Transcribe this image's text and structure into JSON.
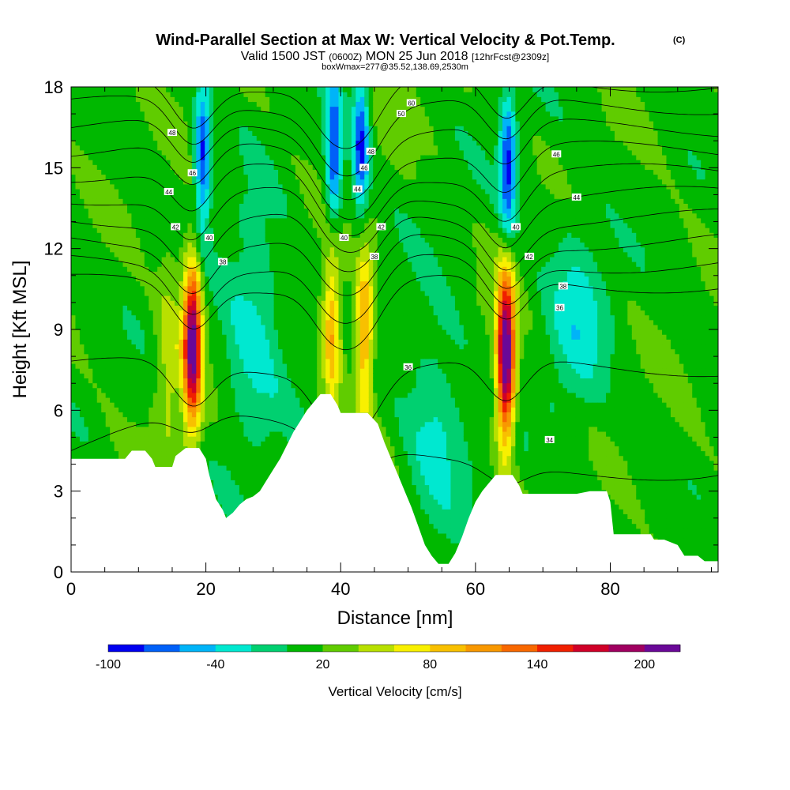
{
  "titles": {
    "main": "Wind-Parallel Section at Max W: Vertical Velocity & Pot.Temp.",
    "copyright": "(C)",
    "valid_a": "Valid 1500 JST ",
    "valid_b": "(0600Z)",
    "valid_c": " MON 25 Jun 2018 ",
    "valid_d": "[12hrFcst@2309z]",
    "box": "boxWmax=277@35.52,138.69,2530m"
  },
  "colors": {
    "terrain": "#ffffff",
    "contour": "#000000",
    "frame": "#000000",
    "background": "#ffffff"
  },
  "chart_data": {
    "type": "heatmap",
    "title": "Wind-Parallel Section at Max W: Vertical Velocity & Pot.Temp.",
    "xlabel": "Distance [nm]",
    "ylabel": "Height [Kft MSL]",
    "xlim": [
      0,
      96
    ],
    "ylim": [
      0,
      18
    ],
    "x_ticks": [
      "0",
      "20",
      "40",
      "60",
      "80"
    ],
    "y_ticks": [
      "0",
      "3",
      "6",
      "9",
      "12",
      "15",
      "18"
    ],
    "colorbar": {
      "label": "Vertical Velocity [cm/s]",
      "ticks": [
        "-100",
        "-40",
        "20",
        "80",
        "140",
        "200"
      ],
      "tick_values": [
        -100,
        -40,
        20,
        80,
        140,
        200
      ],
      "range": [
        -100,
        220
      ],
      "levels": [
        -100,
        -80,
        -60,
        -40,
        -20,
        0,
        20,
        40,
        60,
        80,
        100,
        120,
        140,
        160,
        180,
        200,
        220
      ],
      "colors": [
        "#0000f0",
        "#0060f8",
        "#00b4f8",
        "#00e8d0",
        "#00d070",
        "#00b800",
        "#60cc00",
        "#b8e000",
        "#f8f000",
        "#f8c000",
        "#f89800",
        "#f86800",
        "#f02000",
        "#d00028",
        "#a00060",
        "#6a0898"
      ]
    },
    "updrafts": [
      {
        "x": 18,
        "z_peak": 8.5,
        "peak_w": 200
      },
      {
        "x": 38.7,
        "z_peak": 9.0,
        "peak_w": 90
      },
      {
        "x": 43.5,
        "z_peak": 9.0,
        "peak_w": 100
      },
      {
        "x": 64.5,
        "z_peak": 8.0,
        "peak_w": 220
      }
    ],
    "downdrafts": [
      {
        "x": 19.5,
        "z_peak": 15.5,
        "peak_w": -100
      },
      {
        "x": 39.0,
        "z_peak": 15.5,
        "peak_w": -100
      },
      {
        "x": 43.0,
        "z_peak": 15.8,
        "peak_w": -100
      },
      {
        "x": 64.8,
        "z_peak": 15.0,
        "peak_w": -100
      },
      {
        "x": 27,
        "z_peak": 9.0,
        "peak_w": -45
      },
      {
        "x": 54,
        "z_peak": 5.5,
        "peak_w": -40
      },
      {
        "x": 75,
        "z_peak": 9.5,
        "peak_w": -40
      }
    ],
    "terrain": [
      [
        0,
        4.2
      ],
      [
        4,
        4.2
      ],
      [
        8,
        4.2
      ],
      [
        9,
        4.5
      ],
      [
        11,
        4.5
      ],
      [
        12,
        4.2
      ],
      [
        12.5,
        3.9
      ],
      [
        15,
        3.9
      ],
      [
        15.5,
        4.3
      ],
      [
        17,
        4.6
      ],
      [
        19,
        4.6
      ],
      [
        20,
        4.2
      ],
      [
        20.5,
        3.6
      ],
      [
        21.5,
        2.7
      ],
      [
        22.5,
        2.3
      ],
      [
        23,
        2.0
      ],
      [
        24,
        2.2
      ],
      [
        25,
        2.5
      ],
      [
        26,
        2.7
      ],
      [
        27,
        2.8
      ],
      [
        28,
        3.0
      ],
      [
        29,
        3.4
      ],
      [
        30,
        3.8
      ],
      [
        31,
        4.2
      ],
      [
        32,
        4.7
      ],
      [
        33,
        5.2
      ],
      [
        34,
        5.6
      ],
      [
        35,
        6.0
      ],
      [
        36,
        6.3
      ],
      [
        37,
        6.6
      ],
      [
        38.5,
        6.6
      ],
      [
        39.5,
        6.2
      ],
      [
        40,
        5.9
      ],
      [
        42,
        5.9
      ],
      [
        44,
        5.9
      ],
      [
        45.5,
        5.5
      ],
      [
        46.5,
        4.8
      ],
      [
        47.5,
        4.2
      ],
      [
        48.5,
        3.6
      ],
      [
        49.5,
        3.0
      ],
      [
        50.5,
        2.4
      ],
      [
        51.5,
        1.7
      ],
      [
        52.5,
        1.0
      ],
      [
        53.5,
        0.6
      ],
      [
        54.5,
        0.3
      ],
      [
        56,
        0.3
      ],
      [
        57,
        0.7
      ],
      [
        58,
        1.3
      ],
      [
        59,
        2.0
      ],
      [
        60,
        2.6
      ],
      [
        61,
        3.0
      ],
      [
        62,
        3.3
      ],
      [
        63,
        3.6
      ],
      [
        65.5,
        3.6
      ],
      [
        66.5,
        3.2
      ],
      [
        67,
        2.9
      ],
      [
        69,
        2.9
      ],
      [
        71,
        2.9
      ],
      [
        73,
        2.9
      ],
      [
        75,
        2.9
      ],
      [
        77,
        3.0
      ],
      [
        79.5,
        3.0
      ],
      [
        80,
        2.6
      ],
      [
        80.5,
        1.4
      ],
      [
        82,
        1.4
      ],
      [
        86,
        1.4
      ],
      [
        86.5,
        1.2
      ],
      [
        88,
        1.2
      ],
      [
        90,
        1.0
      ],
      [
        91,
        0.6
      ],
      [
        93,
        0.6
      ],
      [
        94,
        0.4
      ],
      [
        96,
        0.4
      ]
    ],
    "theta_levels": [
      34,
      36,
      38,
      40,
      42,
      44,
      46,
      48,
      50,
      52,
      54,
      56,
      58,
      60,
      62,
      64,
      66,
      68,
      70
    ],
    "contour_labels": [
      "48",
      "46",
      "44",
      "42",
      "40",
      "38",
      "42",
      "40",
      "38",
      "44",
      "46",
      "48",
      "50",
      "36",
      "60",
      "46",
      "44",
      "42",
      "40",
      "38",
      "36",
      "34"
    ]
  }
}
